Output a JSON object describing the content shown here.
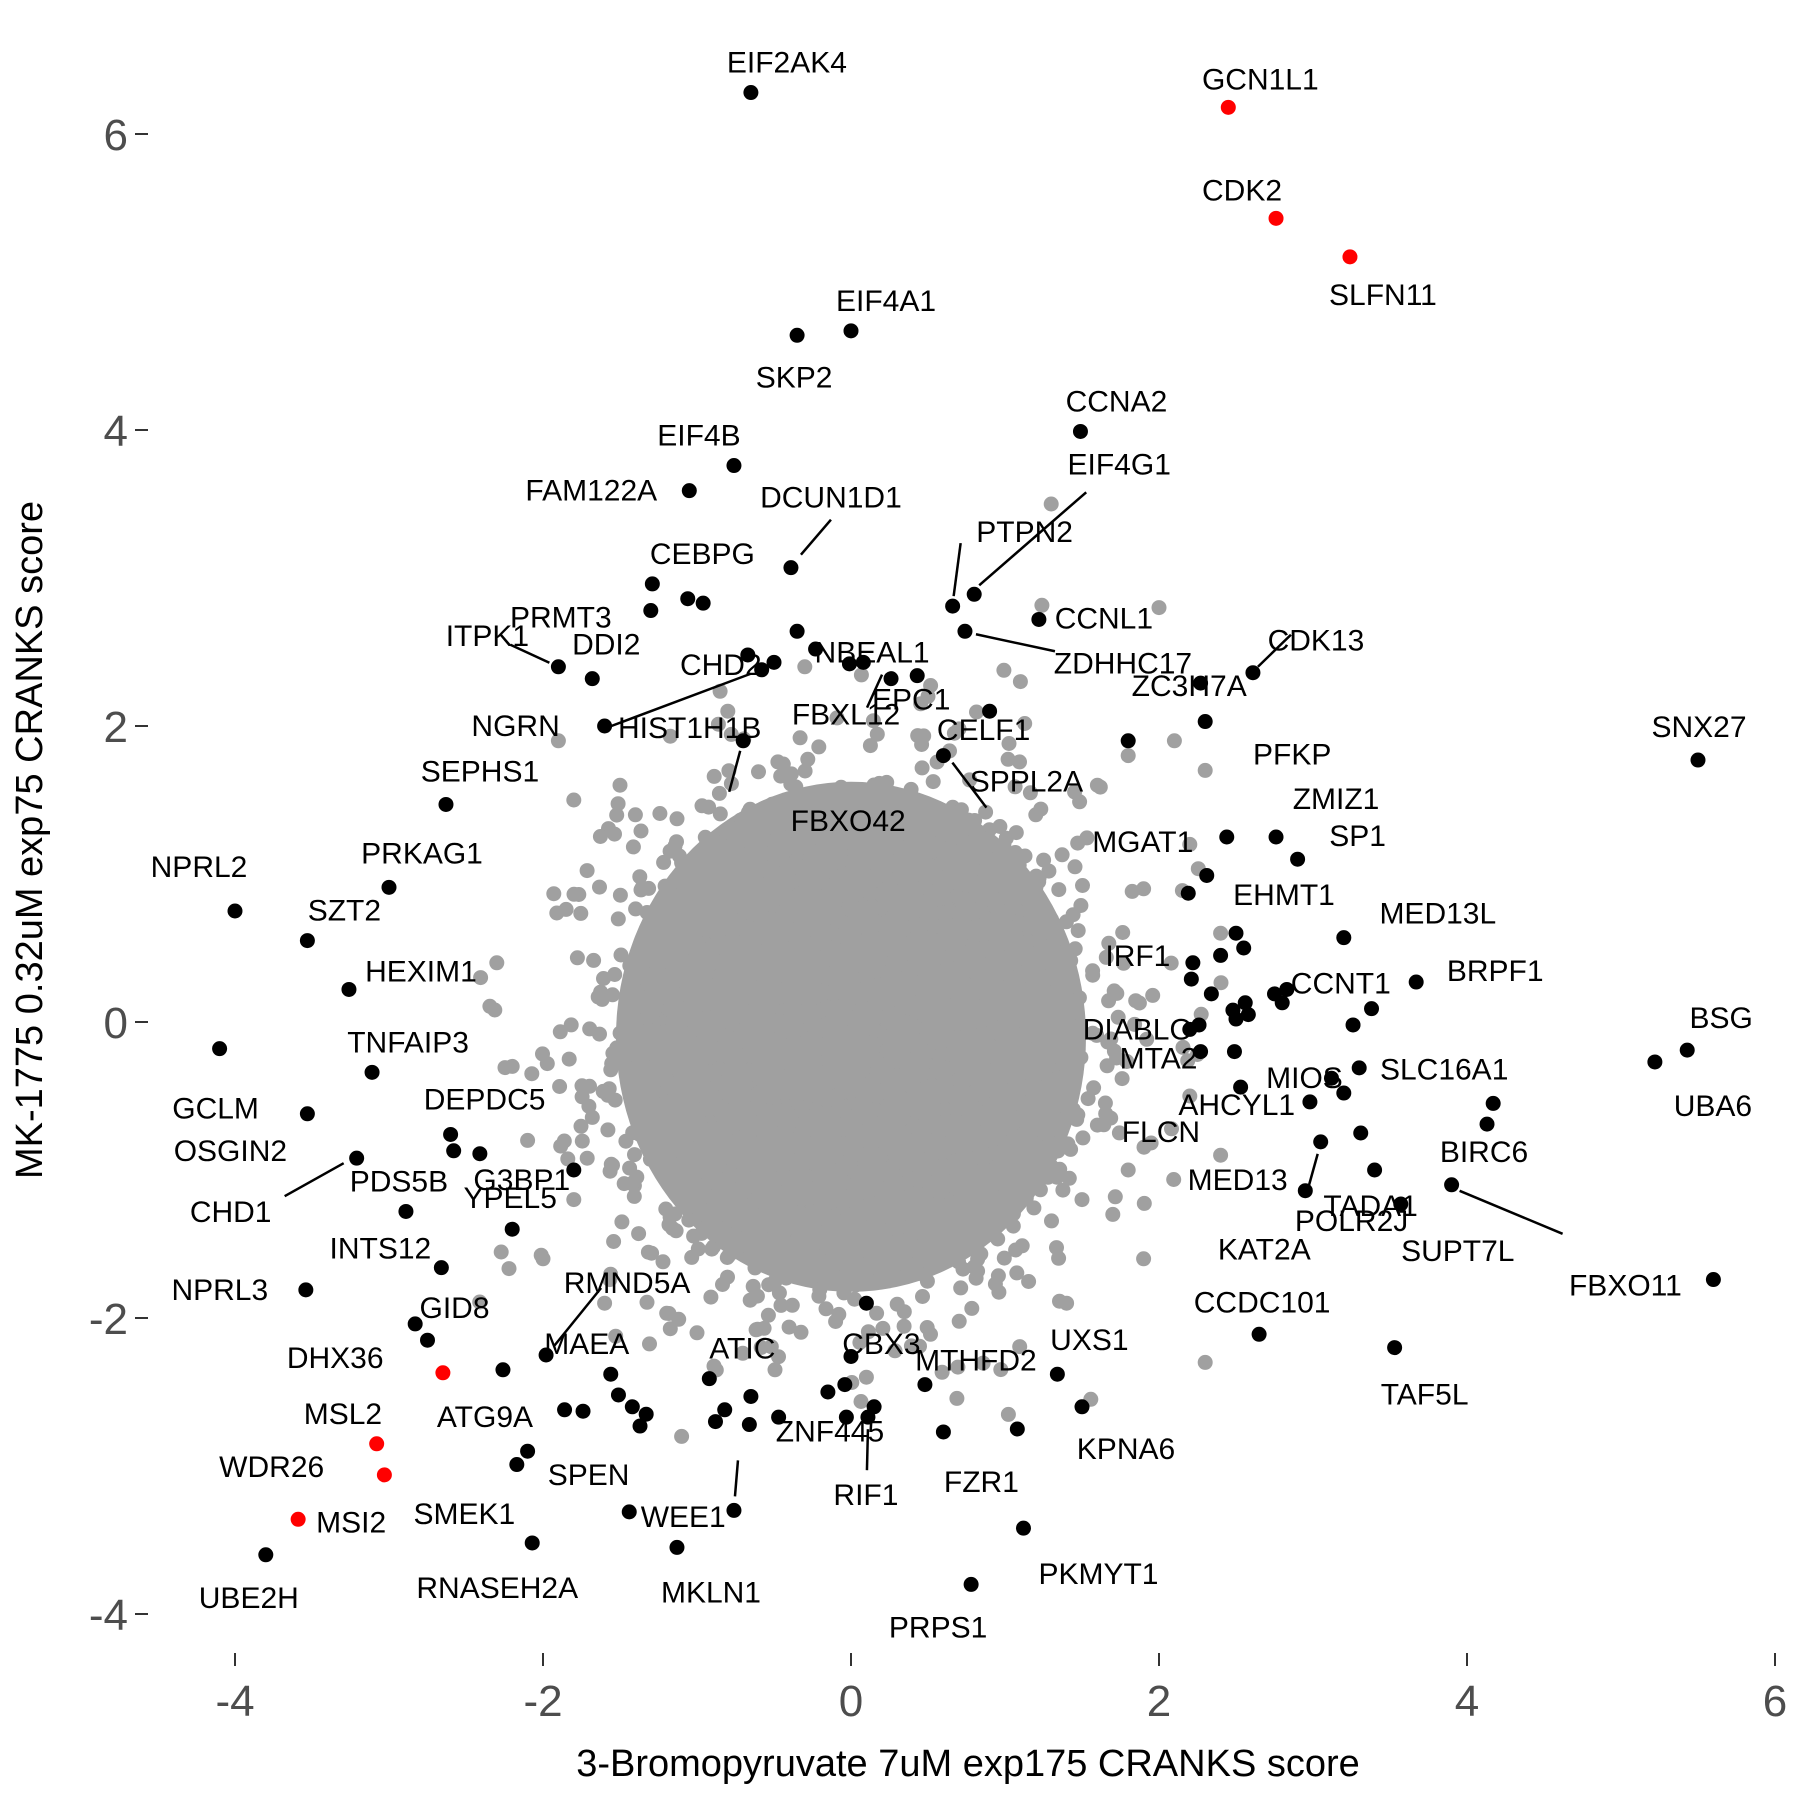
{
  "chart_data": {
    "type": "scatter",
    "xlabel": "3-Bromopyruvate 7uM exp175 CRANKS score",
    "ylabel": "MK-1775 0.32uM exp75 CRANKS score",
    "xlim": [
      -4.5,
      6
    ],
    "ylim": [
      -4.3,
      6.5
    ],
    "xticks": [
      -4,
      -2,
      0,
      2,
      4,
      6
    ],
    "yticks": [
      -4,
      -2,
      0,
      2,
      4,
      6
    ],
    "grid": false,
    "legend": "none",
    "colors": {
      "background": "#ffffff",
      "labeled": "#000000",
      "highlighted": "#ff0000",
      "unlabeled": "#a0a0a0"
    },
    "background_cloud": {
      "color": "#a0a0a0",
      "center": [
        0,
        0
      ],
      "spread_x": 0.75,
      "spread_y": 0.85
    },
    "gray_points": [
      [
        1.3,
        3.5
      ],
      [
        2.0,
        2.8
      ],
      [
        1.1,
        2.3
      ],
      [
        2.1,
        1.9
      ],
      [
        1.8,
        1.8
      ],
      [
        0.5,
        2.2
      ],
      [
        -0.8,
        2.1
      ],
      [
        -1.9,
        1.9
      ],
      [
        -1.8,
        1.5
      ],
      [
        1.6,
        1.6
      ],
      [
        2.3,
        1.7
      ],
      [
        -1.5,
        1.6
      ],
      [
        2.2,
        1.2
      ],
      [
        1.9,
        0.9
      ],
      [
        2.4,
        0.6
      ],
      [
        -2.3,
        0.4
      ],
      [
        -2.2,
        -0.3
      ],
      [
        2.2,
        -0.5
      ],
      [
        2.4,
        -0.9
      ],
      [
        -2.1,
        -0.8
      ],
      [
        1.8,
        -1.0
      ],
      [
        -1.8,
        -1.2
      ],
      [
        1.7,
        -1.3
      ],
      [
        -2.0,
        -1.6
      ],
      [
        1.4,
        -1.9
      ],
      [
        -1.6,
        -1.9
      ],
      [
        0.3,
        -1.6
      ],
      [
        -1.0,
        -2.1
      ],
      [
        1.9,
        -1.6
      ],
      [
        2.3,
        -2.3
      ],
      [
        -1.1,
        -2.8
      ],
      [
        0.1,
        -2.4
      ],
      [
        1.5,
        -1.2
      ],
      [
        -0.3,
        2.4
      ],
      [
        1.2,
        1.4
      ],
      [
        -1.4,
        1.4
      ]
    ],
    "points": [
      {
        "gene": "EIF2AK4",
        "x": -0.65,
        "y": 6.28,
        "color": "#000000"
      },
      {
        "gene": "GCN1L1",
        "x": 2.45,
        "y": 6.18,
        "color": "#ff0000"
      },
      {
        "gene": "CDK2",
        "x": 2.76,
        "y": 5.43,
        "color": "#ff0000"
      },
      {
        "gene": "SLFN11",
        "x": 3.24,
        "y": 5.17,
        "color": "#ff0000"
      },
      {
        "gene": "EIF4A1",
        "x": 0.0,
        "y": 4.67,
        "color": "#000000"
      },
      {
        "gene": "SKP2",
        "x": -0.35,
        "y": 4.64,
        "color": "#000000"
      },
      {
        "gene": "CCNA2",
        "x": 1.49,
        "y": 3.99,
        "color": "#000000"
      },
      {
        "gene": "EIF4B",
        "x": -0.76,
        "y": 3.76,
        "color": "#000000"
      },
      {
        "gene": "FAM122A",
        "x": -1.05,
        "y": 3.59,
        "color": "#000000"
      },
      {
        "gene": "EIF4G1",
        "x": 0.8,
        "y": 2.89,
        "color": "#000000"
      },
      {
        "gene": "DCUN1D1",
        "x": -0.39,
        "y": 3.07,
        "color": "#000000"
      },
      {
        "gene": "PTPN2",
        "x": 0.66,
        "y": 2.81,
        "color": "#000000"
      },
      {
        "gene": "NBEAL1",
        "x": -0.35,
        "y": 2.64,
        "color": "#000000"
      },
      {
        "gene": "CEBPG",
        "x": -1.29,
        "y": 2.96,
        "color": "#000000"
      },
      {
        "gene": "PRMT3",
        "x": -1.3,
        "y": 2.78,
        "color": "#000000"
      },
      {
        "gene": "",
        "x": -1.06,
        "y": 2.86,
        "color": "#000000"
      },
      {
        "gene": "",
        "x": -0.96,
        "y": 2.83,
        "color": "#000000"
      },
      {
        "gene": "CCNL1",
        "x": 1.22,
        "y": 2.72,
        "color": "#000000"
      },
      {
        "gene": "ZDHHC17",
        "x": 0.74,
        "y": 2.64,
        "color": "#000000"
      },
      {
        "gene": "",
        "x": -0.23,
        "y": 2.52,
        "color": "#000000"
      },
      {
        "gene": "EPC1",
        "x": 0.43,
        "y": 2.34,
        "color": "#000000"
      },
      {
        "gene": "",
        "x": 0.08,
        "y": 2.43,
        "color": "#000000"
      },
      {
        "gene": "",
        "x": -0.01,
        "y": 2.42,
        "color": "#000000"
      },
      {
        "gene": "CHD2",
        "x": -0.67,
        "y": 2.48,
        "color": "#000000"
      },
      {
        "gene": "",
        "x": -0.5,
        "y": 2.43,
        "color": "#000000"
      },
      {
        "gene": "HIST1H1B",
        "x": -0.58,
        "y": 2.38,
        "color": "#000000"
      },
      {
        "gene": "FBXL12",
        "x": 0.26,
        "y": 2.32,
        "color": "#000000"
      },
      {
        "gene": "DDI2",
        "x": -1.68,
        "y": 2.32,
        "color": "#000000"
      },
      {
        "gene": "CDK13",
        "x": 2.61,
        "y": 2.36,
        "color": "#000000"
      },
      {
        "gene": "",
        "x": 2.27,
        "y": 2.29,
        "color": "#000000"
      },
      {
        "gene": "PFKP",
        "x": 2.3,
        "y": 2.03,
        "color": "#000000"
      },
      {
        "gene": "SNX27",
        "x": 5.5,
        "y": 1.77,
        "color": "#000000"
      },
      {
        "gene": "SEPHS1",
        "x": -2.63,
        "y": 1.47,
        "color": "#000000"
      },
      {
        "gene": "ZMIZ1",
        "x": 2.76,
        "y": 1.25,
        "color": "#000000"
      },
      {
        "gene": "MGAT1",
        "x": 2.44,
        "y": 1.25,
        "color": "#000000"
      },
      {
        "gene": "",
        "x": 2.31,
        "y": 0.99,
        "color": "#000000"
      },
      {
        "gene": "PRKAG1",
        "x": -3.0,
        "y": 0.91,
        "color": "#000000"
      },
      {
        "gene": "",
        "x": 2.19,
        "y": 0.87,
        "color": "#000000"
      },
      {
        "gene": "NPRL2",
        "x": -4.0,
        "y": 0.75,
        "color": "#000000"
      },
      {
        "gene": "MED13L",
        "x": 3.2,
        "y": 0.57,
        "color": "#000000"
      },
      {
        "gene": "SZT2",
        "x": -3.53,
        "y": 0.55,
        "color": "#000000"
      },
      {
        "gene": "",
        "x": 2.55,
        "y": 0.5,
        "color": "#000000"
      },
      {
        "gene": "",
        "x": 2.4,
        "y": 0.45,
        "color": "#000000"
      },
      {
        "gene": "IRF1",
        "x": 2.22,
        "y": 0.4,
        "color": "#000000"
      },
      {
        "gene": "BRPF1",
        "x": 3.67,
        "y": 0.27,
        "color": "#000000"
      },
      {
        "gene": "",
        "x": 2.21,
        "y": 0.29,
        "color": "#000000"
      },
      {
        "gene": "HEXIM1",
        "x": -3.26,
        "y": 0.22,
        "color": "#000000"
      },
      {
        "gene": "CCNT1",
        "x": 2.83,
        "y": 0.22,
        "color": "#000000"
      },
      {
        "gene": "",
        "x": 2.75,
        "y": 0.19,
        "color": "#000000"
      },
      {
        "gene": "",
        "x": 2.34,
        "y": 0.19,
        "color": "#000000"
      },
      {
        "gene": "",
        "x": 2.56,
        "y": 0.13,
        "color": "#000000"
      },
      {
        "gene": "",
        "x": 2.8,
        "y": 0.13,
        "color": "#000000"
      },
      {
        "gene": "",
        "x": 2.48,
        "y": 0.08,
        "color": "#000000"
      },
      {
        "gene": "",
        "x": 3.38,
        "y": 0.09,
        "color": "#000000"
      },
      {
        "gene": "",
        "x": 2.58,
        "y": 0.05,
        "color": "#000000"
      },
      {
        "gene": "",
        "x": 2.5,
        "y": 0.02,
        "color": "#000000"
      },
      {
        "gene": "",
        "x": 2.26,
        "y": -0.02,
        "color": "#000000"
      },
      {
        "gene": "",
        "x": 3.26,
        "y": -0.02,
        "color": "#000000"
      },
      {
        "gene": "GCLM",
        "x": -4.1,
        "y": -0.18,
        "color": "#000000"
      },
      {
        "gene": "BSG",
        "x": 5.43,
        "y": -0.19,
        "color": "#000000"
      },
      {
        "gene": "",
        "x": 2.49,
        "y": -0.2,
        "color": "#000000"
      },
      {
        "gene": "MTA2",
        "x": 2.27,
        "y": -0.2,
        "color": "#000000"
      },
      {
        "gene": "UBA6",
        "x": 5.22,
        "y": -0.27,
        "color": "#000000"
      },
      {
        "gene": "",
        "x": 3.3,
        "y": -0.31,
        "color": "#000000"
      },
      {
        "gene": "TNFAIP3",
        "x": -3.11,
        "y": -0.34,
        "color": "#000000"
      },
      {
        "gene": "MIOS",
        "x": 3.12,
        "y": -0.38,
        "color": "#000000"
      },
      {
        "gene": "",
        "x": 2.53,
        "y": -0.44,
        "color": "#000000"
      },
      {
        "gene": "",
        "x": 3.2,
        "y": -0.48,
        "color": "#000000"
      },
      {
        "gene": "FLCN",
        "x": 2.98,
        "y": -0.54,
        "color": "#000000"
      },
      {
        "gene": "SLC16A1",
        "x": 4.17,
        "y": -0.55,
        "color": "#000000"
      },
      {
        "gene": "OSGIN2",
        "x": -3.53,
        "y": -0.62,
        "color": "#000000"
      },
      {
        "gene": "BIRC6",
        "x": 4.13,
        "y": -0.69,
        "color": "#000000"
      },
      {
        "gene": "AHCYL1",
        "x": 3.31,
        "y": -0.75,
        "color": "#000000"
      },
      {
        "gene": "DEPDC5",
        "x": -2.6,
        "y": -0.76,
        "color": "#000000"
      },
      {
        "gene": "MED13",
        "x": 3.05,
        "y": -0.81,
        "color": "#000000"
      },
      {
        "gene": "",
        "x": -2.58,
        "y": -0.87,
        "color": "#000000"
      },
      {
        "gene": "",
        "x": -2.41,
        "y": -0.89,
        "color": "#000000"
      },
      {
        "gene": "CHD1",
        "x": -3.21,
        "y": -0.92,
        "color": "#000000"
      },
      {
        "gene": "KAT2A",
        "x": 2.95,
        "y": -1.14,
        "color": "#000000"
      },
      {
        "gene": "SUPT7L",
        "x": 3.57,
        "y": -1.23,
        "color": "#000000"
      },
      {
        "gene": "PDS5B",
        "x": -2.89,
        "y": -1.28,
        "color": "#000000"
      },
      {
        "gene": "INTS12",
        "x": -2.66,
        "y": -1.66,
        "color": "#000000"
      },
      {
        "gene": "FBXO11",
        "x": 5.6,
        "y": -1.74,
        "color": "#000000"
      },
      {
        "gene": "NPRL3",
        "x": -3.54,
        "y": -1.81,
        "color": "#000000"
      },
      {
        "gene": "DHX36",
        "x": -2.83,
        "y": -2.04,
        "color": "#000000"
      },
      {
        "gene": "CCDC101",
        "x": 2.65,
        "y": -2.11,
        "color": "#000000"
      },
      {
        "gene": "GID8",
        "x": -2.75,
        "y": -2.15,
        "color": "#000000"
      },
      {
        "gene": "TAF5L",
        "x": 3.53,
        "y": -2.2,
        "color": "#000000"
      },
      {
        "gene": "RMND5A",
        "x": -1.98,
        "y": -2.25,
        "color": "#000000"
      },
      {
        "gene": "",
        "x": 0.0,
        "y": -2.26,
        "color": "#000000"
      },
      {
        "gene": "MSL2",
        "x": -2.65,
        "y": -2.37,
        "color": "#ff0000"
      },
      {
        "gene": "ATG9A",
        "x": -2.26,
        "y": -2.35,
        "color": "#000000"
      },
      {
        "gene": "UXS1",
        "x": 1.34,
        "y": -2.38,
        "color": "#000000"
      },
      {
        "gene": "MAEA",
        "x": -1.56,
        "y": -2.38,
        "color": "#000000"
      },
      {
        "gene": "ATIC",
        "x": -0.92,
        "y": -2.41,
        "color": "#000000"
      },
      {
        "gene": "",
        "x": -0.04,
        "y": -2.45,
        "color": "#000000"
      },
      {
        "gene": "MTHFD2",
        "x": 0.48,
        "y": -2.45,
        "color": "#000000"
      },
      {
        "gene": "",
        "x": -1.51,
        "y": -2.52,
        "color": "#000000"
      },
      {
        "gene": "",
        "x": -0.65,
        "y": -2.53,
        "color": "#000000"
      },
      {
        "gene": "",
        "x": -0.15,
        "y": -2.5,
        "color": "#000000"
      },
      {
        "gene": "",
        "x": -1.42,
        "y": -2.6,
        "color": "#000000"
      },
      {
        "gene": "",
        "x": 0.15,
        "y": -2.6,
        "color": "#000000"
      },
      {
        "gene": "",
        "x": -1.86,
        "y": -2.62,
        "color": "#000000"
      },
      {
        "gene": "",
        "x": -1.74,
        "y": -2.63,
        "color": "#000000"
      },
      {
        "gene": "",
        "x": -1.33,
        "y": -2.65,
        "color": "#000000"
      },
      {
        "gene": "",
        "x": -0.82,
        "y": -2.62,
        "color": "#000000"
      },
      {
        "gene": "",
        "x": -0.47,
        "y": -2.67,
        "color": "#000000"
      },
      {
        "gene": "",
        "x": -0.03,
        "y": -2.67,
        "color": "#000000"
      },
      {
        "gene": "RIF1",
        "x": 0.11,
        "y": -2.67,
        "color": "#000000"
      },
      {
        "gene": "",
        "x": -0.88,
        "y": -2.7,
        "color": "#000000"
      },
      {
        "gene": "",
        "x": -0.66,
        "y": -2.72,
        "color": "#000000"
      },
      {
        "gene": "",
        "x": -1.37,
        "y": -2.73,
        "color": "#000000"
      },
      {
        "gene": "FZR1",
        "x": 0.6,
        "y": -2.77,
        "color": "#000000"
      },
      {
        "gene": "",
        "x": 1.08,
        "y": -2.75,
        "color": "#000000"
      },
      {
        "gene": "WDR26",
        "x": -3.08,
        "y": -2.85,
        "color": "#ff0000"
      },
      {
        "gene": "SPEN",
        "x": -2.1,
        "y": -2.9,
        "color": "#000000"
      },
      {
        "gene": "SMEK1",
        "x": -3.03,
        "y": -3.06,
        "color": "#ff0000"
      },
      {
        "gene": "",
        "x": -2.17,
        "y": -2.99,
        "color": "#000000"
      },
      {
        "gene": "ZNF445",
        "x": -0.76,
        "y": -3.3,
        "color": "#000000"
      },
      {
        "gene": "MSI2",
        "x": -3.59,
        "y": -3.36,
        "color": "#ff0000"
      },
      {
        "gene": "WEE1",
        "x": -1.44,
        "y": -3.31,
        "color": "#000000"
      },
      {
        "gene": "PKMYT1",
        "x": 1.12,
        "y": -3.42,
        "color": "#000000"
      },
      {
        "gene": "RNASEH2A",
        "x": -2.07,
        "y": -3.52,
        "color": "#000000"
      },
      {
        "gene": "MKLN1",
        "x": -1.13,
        "y": -3.55,
        "color": "#000000"
      },
      {
        "gene": "PRPS1",
        "x": 0.78,
        "y": -3.8,
        "color": "#000000"
      },
      {
        "gene": "DIABLO",
        "x": 2.2,
        "y": -0.05,
        "color": "#000000"
      },
      {
        "gene": "EHMT1",
        "x": 2.5,
        "y": 0.6,
        "color": "#000000"
      },
      {
        "gene": "SP1",
        "x": 2.9,
        "y": 1.1,
        "color": "#000000"
      },
      {
        "gene": "ZC3H7A",
        "x": 1.8,
        "y": 1.9,
        "color": "#000000"
      },
      {
        "gene": "CELF1",
        "x": 0.9,
        "y": 2.1,
        "color": "#000000"
      },
      {
        "gene": "SPPL2A",
        "x": 0.6,
        "y": 1.8,
        "color": "#000000"
      },
      {
        "gene": "FBXO42",
        "x": -0.7,
        "y": 1.9,
        "color": "#000000"
      },
      {
        "gene": "NGRN",
        "x": -1.6,
        "y": 2.0,
        "color": "#000000"
      },
      {
        "gene": "ITPK1",
        "x": -1.9,
        "y": 2.4,
        "color": "#000000"
      },
      {
        "gene": "G3BP1",
        "x": -1.8,
        "y": -1.0,
        "color": "#000000"
      },
      {
        "gene": "YPEL5",
        "x": -2.2,
        "y": -1.4,
        "color": "#000000"
      },
      {
        "gene": "CBX3",
        "x": 0.1,
        "y": -1.9,
        "color": "#000000"
      },
      {
        "gene": "KPNA6",
        "x": 1.5,
        "y": -2.6,
        "color": "#000000"
      },
      {
        "gene": "TADA1",
        "x": 3.4,
        "y": -1.0,
        "color": "#000000"
      },
      {
        "gene": "POLR2J",
        "x": 3.9,
        "y": -1.1,
        "color": "#000000"
      },
      {
        "gene": "UBE2H",
        "x": -3.8,
        "y": -3.6,
        "color": "#000000"
      }
    ]
  }
}
